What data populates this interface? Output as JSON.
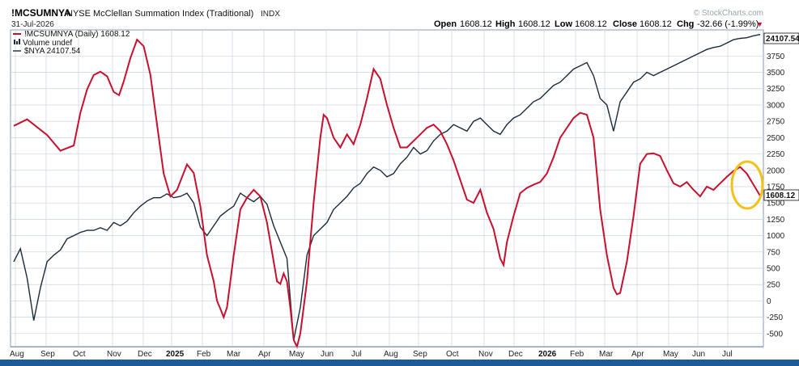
{
  "header": {
    "symbol": "!MCSUMNYA",
    "description": "NYSE McClellan Summation Index (Traditional)",
    "exchange": "INDX",
    "date": "31-Jul-2026",
    "brand": "© StockCharts.com",
    "ohlc": [
      {
        "label": "Open",
        "value": "1608.12"
      },
      {
        "label": "High",
        "value": "1608.12"
      },
      {
        "label": "Low",
        "value": "1608.12"
      },
      {
        "label": "Close",
        "value": "1608.12"
      },
      {
        "label": "Chg",
        "value": "-32.66 (-1.99%)"
      }
    ],
    "chg_arrow": "▼"
  },
  "legend": {
    "summation": "!MCSUMNYA (Daily) 1608.12",
    "volume": "Volume undef",
    "nya": "$NYA 24107.54"
  },
  "colors": {
    "summation": "#c8102e",
    "nya": "#1c2b3c",
    "highlight": "#f2c21b",
    "grid": "#c9d3e0",
    "axis_bg": "#1c5a9a"
  },
  "chart_data": {
    "type": "line",
    "x_axis_labels": [
      "Aug",
      "Sep",
      "Oct",
      "Nov",
      "Dec",
      "2025",
      "Feb",
      "Mar",
      "Apr",
      "May",
      "Jun",
      "Jul",
      "Aug",
      "Sep",
      "Oct",
      "Nov",
      "Dec",
      "2026",
      "Feb",
      "Mar",
      "Apr",
      "May",
      "Jun",
      "Jul"
    ],
    "y_axis": {
      "ticks": [
        3750,
        3500,
        3250,
        3000,
        2750,
        2500,
        2250,
        2000,
        1750,
        1500,
        1250,
        1000,
        750,
        500,
        250,
        0,
        -250,
        -500
      ],
      "range": [
        -700,
        4150
      ]
    },
    "last_values": {
      "summation": "1608.12",
      "nya": "24107.54"
    },
    "series": [
      {
        "name": "!MCSUMNYA (Daily)",
        "values": [
          [
            0,
            2680
          ],
          [
            2,
            2780
          ],
          [
            5,
            2540
          ],
          [
            7,
            2300
          ],
          [
            9,
            2380
          ],
          [
            10,
            2880
          ],
          [
            11,
            3240
          ],
          [
            12,
            3460
          ],
          [
            13,
            3510
          ],
          [
            14,
            3440
          ],
          [
            15,
            3200
          ],
          [
            15.8,
            3150
          ],
          [
            16.5,
            3360
          ],
          [
            17.5,
            3720
          ],
          [
            18.5,
            4000
          ],
          [
            19.5,
            3900
          ],
          [
            20.5,
            3460
          ],
          [
            21.5,
            2700
          ],
          [
            22.5,
            1950
          ],
          [
            23.5,
            1600
          ],
          [
            24.5,
            1700
          ],
          [
            25.5,
            1960
          ],
          [
            26,
            2090
          ],
          [
            27,
            1960
          ],
          [
            28,
            1450
          ],
          [
            29,
            700
          ],
          [
            30,
            300
          ],
          [
            30.5,
            0
          ],
          [
            31,
            -120
          ],
          [
            31.5,
            -250
          ],
          [
            32,
            -100
          ],
          [
            33,
            700
          ],
          [
            34,
            1400
          ],
          [
            35,
            1580
          ],
          [
            36,
            1700
          ],
          [
            37,
            1600
          ],
          [
            38,
            1200
          ],
          [
            39,
            600
          ],
          [
            39.5,
            300
          ],
          [
            40,
            260
          ],
          [
            40.5,
            420
          ],
          [
            41,
            300
          ],
          [
            41.5,
            -100
          ],
          [
            42,
            -600
          ],
          [
            42.5,
            -700
          ],
          [
            43,
            -500
          ],
          [
            44,
            300
          ],
          [
            45,
            1500
          ],
          [
            46,
            2500
          ],
          [
            46.5,
            2850
          ],
          [
            47,
            2800
          ],
          [
            48,
            2500
          ],
          [
            49,
            2350
          ],
          [
            50,
            2550
          ],
          [
            51,
            2400
          ],
          [
            52,
            2700
          ],
          [
            53,
            3100
          ],
          [
            54,
            3550
          ],
          [
            55,
            3400
          ],
          [
            56,
            3000
          ],
          [
            57,
            2650
          ],
          [
            58,
            2350
          ],
          [
            59,
            2350
          ],
          [
            60,
            2450
          ],
          [
            61,
            2550
          ],
          [
            62,
            2650
          ],
          [
            63,
            2700
          ],
          [
            64,
            2600
          ],
          [
            65,
            2400
          ],
          [
            66,
            2150
          ],
          [
            67,
            1850
          ],
          [
            68,
            1550
          ],
          [
            69,
            1500
          ],
          [
            70,
            1700
          ],
          [
            71,
            1350
          ],
          [
            72,
            1100
          ],
          [
            73,
            650
          ],
          [
            73.5,
            550
          ],
          [
            74,
            900
          ],
          [
            75,
            1300
          ],
          [
            76,
            1650
          ],
          [
            77,
            1730
          ],
          [
            78,
            1780
          ],
          [
            79,
            1820
          ],
          [
            80,
            1950
          ],
          [
            81,
            2200
          ],
          [
            82,
            2500
          ],
          [
            83,
            2650
          ],
          [
            84,
            2800
          ],
          [
            85,
            2880
          ],
          [
            86,
            2850
          ],
          [
            87,
            2500
          ],
          [
            88,
            1400
          ],
          [
            89,
            700
          ],
          [
            90,
            200
          ],
          [
            90.5,
            100
          ],
          [
            91,
            120
          ],
          [
            92,
            600
          ],
          [
            93,
            1300
          ],
          [
            94,
            2100
          ],
          [
            95,
            2250
          ],
          [
            96,
            2260
          ],
          [
            97,
            2220
          ],
          [
            98,
            2000
          ],
          [
            99,
            1800
          ],
          [
            100,
            1750
          ],
          [
            101,
            1820
          ],
          [
            102,
            1700
          ],
          [
            103,
            1600
          ],
          [
            104,
            1750
          ],
          [
            105,
            1700
          ],
          [
            106,
            1800
          ],
          [
            107,
            1900
          ],
          [
            108,
            1990
          ],
          [
            109,
            2050
          ],
          [
            110,
            1950
          ],
          [
            111,
            1780
          ],
          [
            112,
            1608.12
          ]
        ]
      },
      {
        "name": "$NYA",
        "values": [
          [
            0,
            600
          ],
          [
            1,
            800
          ],
          [
            2,
            350
          ],
          [
            3,
            -300
          ],
          [
            4,
            200
          ],
          [
            5,
            600
          ],
          [
            6,
            700
          ],
          [
            7,
            780
          ],
          [
            8,
            950
          ],
          [
            9,
            1000
          ],
          [
            10,
            1050
          ],
          [
            11,
            1080
          ],
          [
            12,
            1080
          ],
          [
            13,
            1120
          ],
          [
            14,
            1080
          ],
          [
            15,
            1200
          ],
          [
            16,
            1150
          ],
          [
            17,
            1220
          ],
          [
            18,
            1350
          ],
          [
            19,
            1450
          ],
          [
            20,
            1530
          ],
          [
            21,
            1580
          ],
          [
            22,
            1580
          ],
          [
            23,
            1640
          ],
          [
            24,
            1580
          ],
          [
            25,
            1600
          ],
          [
            26,
            1650
          ],
          [
            27,
            1500
          ],
          [
            28,
            1130
          ],
          [
            29,
            1000
          ],
          [
            30,
            1150
          ],
          [
            31,
            1300
          ],
          [
            32,
            1380
          ],
          [
            33,
            1450
          ],
          [
            34,
            1650
          ],
          [
            35,
            1580
          ],
          [
            36,
            1520
          ],
          [
            37,
            1600
          ],
          [
            38,
            1480
          ],
          [
            39,
            1150
          ],
          [
            40,
            900
          ],
          [
            41,
            650
          ],
          [
            42,
            -600
          ],
          [
            43,
            -100
          ],
          [
            44,
            700
          ],
          [
            45,
            1000
          ],
          [
            46,
            1100
          ],
          [
            47,
            1200
          ],
          [
            48,
            1400
          ],
          [
            49,
            1500
          ],
          [
            50,
            1600
          ],
          [
            51,
            1730
          ],
          [
            52,
            1800
          ],
          [
            53,
            1950
          ],
          [
            54,
            2050
          ],
          [
            55,
            2000
          ],
          [
            56,
            1900
          ],
          [
            57,
            1950
          ],
          [
            58,
            2100
          ],
          [
            59,
            2200
          ],
          [
            60,
            2350
          ],
          [
            61,
            2250
          ],
          [
            62,
            2300
          ],
          [
            63,
            2450
          ],
          [
            64,
            2550
          ],
          [
            65,
            2600
          ],
          [
            66,
            2700
          ],
          [
            67,
            2650
          ],
          [
            68,
            2600
          ],
          [
            69,
            2750
          ],
          [
            70,
            2800
          ],
          [
            71,
            2700
          ],
          [
            72,
            2600
          ],
          [
            73,
            2550
          ],
          [
            74,
            2700
          ],
          [
            75,
            2800
          ],
          [
            76,
            2850
          ],
          [
            77,
            2950
          ],
          [
            78,
            3050
          ],
          [
            79,
            3100
          ],
          [
            80,
            3200
          ],
          [
            81,
            3300
          ],
          [
            82,
            3350
          ],
          [
            83,
            3450
          ],
          [
            84,
            3550
          ],
          [
            85,
            3600
          ],
          [
            86,
            3650
          ],
          [
            87,
            3450
          ],
          [
            88,
            3100
          ],
          [
            89,
            3000
          ],
          [
            90,
            2600
          ],
          [
            91,
            3050
          ],
          [
            92,
            3200
          ],
          [
            93,
            3350
          ],
          [
            94,
            3400
          ],
          [
            95,
            3500
          ],
          [
            96,
            3450
          ],
          [
            97,
            3500
          ],
          [
            98,
            3550
          ],
          [
            99,
            3600
          ],
          [
            100,
            3650
          ],
          [
            101,
            3700
          ],
          [
            102,
            3750
          ],
          [
            103,
            3800
          ],
          [
            104,
            3850
          ],
          [
            105,
            3880
          ],
          [
            106,
            3900
          ],
          [
            107,
            3950
          ],
          [
            108,
            4000
          ],
          [
            109,
            4020
          ],
          [
            110,
            4030
          ],
          [
            111,
            4060
          ],
          [
            112,
            4080
          ]
        ]
      }
    ]
  }
}
